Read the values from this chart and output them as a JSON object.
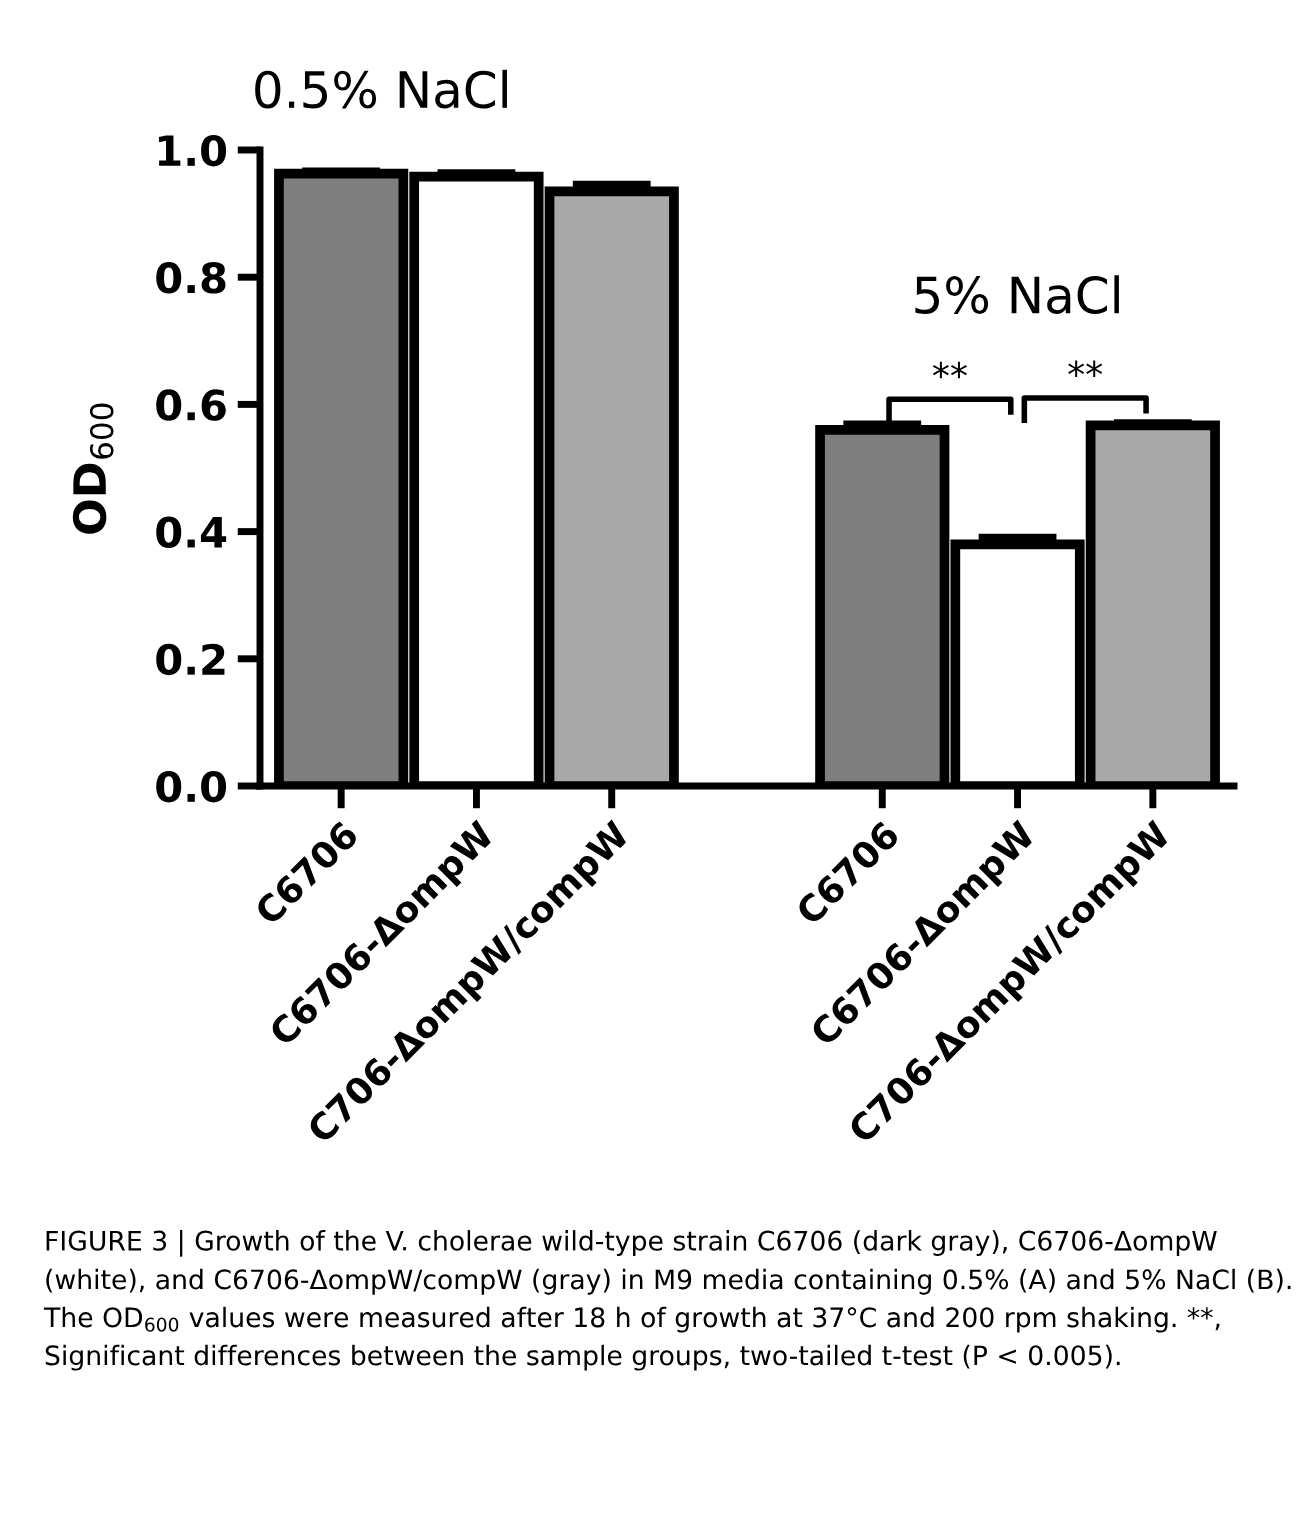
{
  "chart_data": {
    "type": "bar",
    "ylabel": "OD$_{600}$",
    "categories": [
      "C6706",
      "C6706-ΔompW",
      "C706-ΔompW/compW",
      null,
      "C6706",
      "C6706-ΔompW",
      "C706-ΔompW/compW"
    ],
    "values": [
      0.963,
      0.958,
      0.935,
      null,
      0.56,
      0.38,
      0.567
    ],
    "errors": [
      0.003,
      0.005,
      0.01,
      null,
      0.008,
      0.01,
      0.003
    ],
    "colors": [
      "#7f7f7f",
      "#ffffff",
      "#a9a9a9",
      null,
      "#7f7f7f",
      "#ffffff",
      "#a9a9a9"
    ],
    "ylim": [
      0,
      1.0
    ],
    "yticks": [
      {
        "value": 0,
        "label": "0.0"
      },
      0.2,
      0.4,
      0.6,
      0.8,
      {
        "value": 1.0,
        "label": "1.0"
      }
    ],
    "grid": false,
    "annotations": [
      "0.5% NaCl",
      "5% NaCl",
      "**",
      "**",
      "FIGURE 3 | Growth of the V. cholerae wild-type strain C6706 (dark gray), C6706-ΔompW (white), and C6706-ΔompW/compW (gray) in M9 media containing 0.5% (A) and 5% NaCl (B). The OD$_{600}$ values were measured after 18 h of growth at 37°C and 200 rpm shaking. **, Significant differences between the sample groups, two-tailed t-test (P < 0.005)."
    ]
  }
}
